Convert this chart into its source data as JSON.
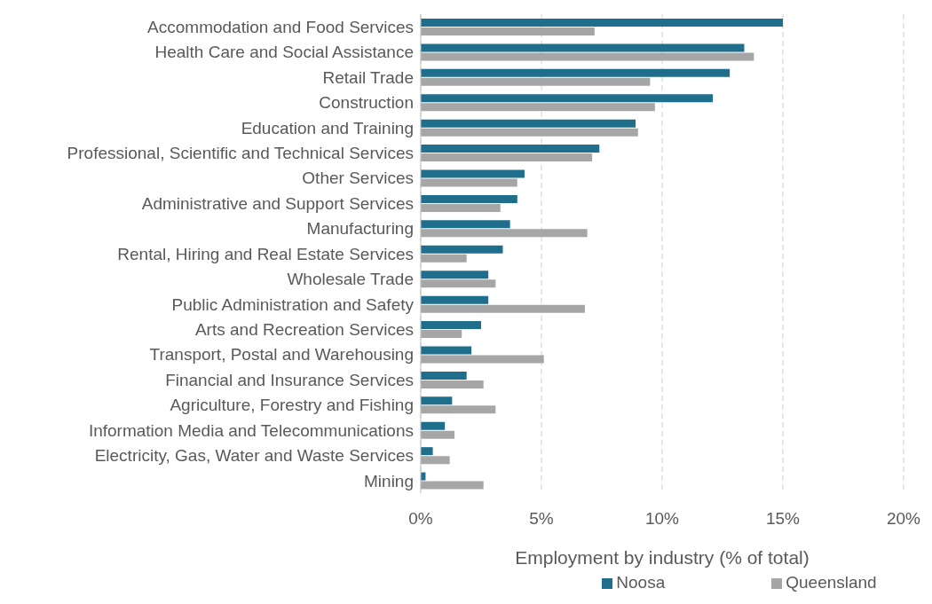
{
  "chart_data": {
    "type": "bar",
    "orientation": "horizontal",
    "xlabel": "Employment by industry (% of total)",
    "categories": [
      "Accommodation and Food Services",
      "Health Care and Social Assistance",
      "Retail Trade",
      "Construction",
      "Education and Training",
      "Professional, Scientific and Technical Services",
      "Other Services",
      "Administrative and Support Services",
      "Manufacturing",
      "Rental, Hiring and Real Estate Services",
      "Wholesale Trade",
      "Public Administration and Safety",
      "Arts and Recreation Services",
      "Transport, Postal and Warehousing",
      "Financial and Insurance Services",
      "Agriculture, Forestry and Fishing",
      "Information Media and Telecommunications",
      "Electricity, Gas, Water and Waste Services",
      "Mining"
    ],
    "series": [
      {
        "name": "Noosa",
        "color": "#1f6e8c",
        "values": [
          15.0,
          13.4,
          12.8,
          12.1,
          8.9,
          7.4,
          4.3,
          4.0,
          3.7,
          3.4,
          2.8,
          2.8,
          2.5,
          2.1,
          1.9,
          1.3,
          1.0,
          0.5,
          0.2
        ]
      },
      {
        "name": "Queensland",
        "color": "#a6a6a6",
        "values": [
          7.2,
          13.8,
          9.5,
          9.7,
          9.0,
          7.1,
          4.0,
          3.3,
          6.9,
          1.9,
          3.1,
          6.8,
          1.7,
          5.1,
          2.6,
          3.1,
          1.4,
          1.2,
          2.6
        ]
      }
    ],
    "xlim": [
      0,
      20
    ],
    "xticks": [
      {
        "value": 0,
        "label": "0%"
      },
      {
        "value": 5,
        "label": "5%"
      },
      {
        "value": 10,
        "label": "10%"
      },
      {
        "value": 15,
        "label": "15%"
      },
      {
        "value": 20,
        "label": "20%"
      }
    ],
    "grid": "x",
    "legend": "bottom"
  }
}
